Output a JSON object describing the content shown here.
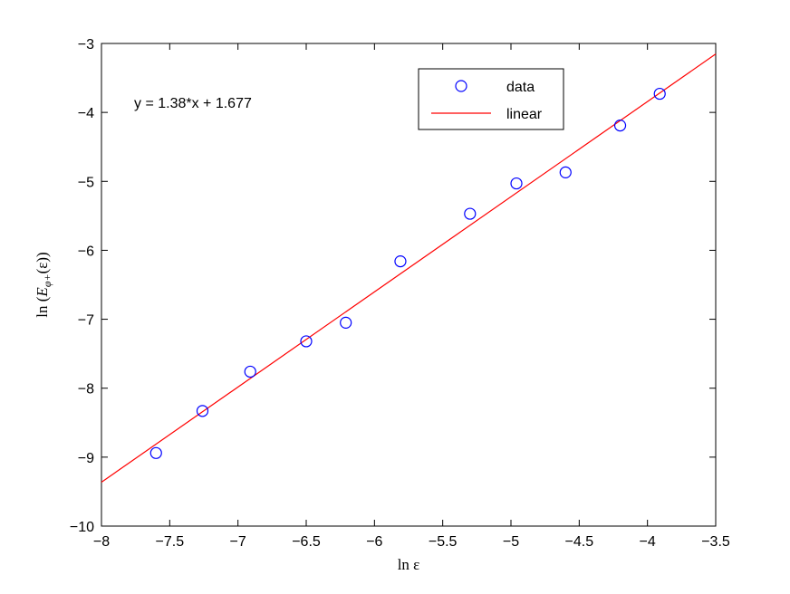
{
  "chart_data": {
    "type": "scatter",
    "annotation": "y = 1.38*x + 1.677",
    "xlabel": "ln ε",
    "ylabel": "ln (E_{φ+}(ε))",
    "ylabel_parts": {
      "prefix": "ln (",
      "main": "E",
      "sub": "φ+",
      "suffix": "(ε))"
    },
    "xlim": [
      -8,
      -3.5
    ],
    "ylim": [
      -10,
      -3
    ],
    "xticks": [
      -8,
      -7.5,
      -7,
      -6.5,
      -6,
      -5.5,
      -5,
      -4.5,
      -4,
      -3.5
    ],
    "yticks": [
      -10,
      -9,
      -8,
      -7,
      -6,
      -5,
      -4,
      -3
    ],
    "xtick_labels": [
      "−8",
      "−7.5",
      "−7",
      "−6.5",
      "−6",
      "−5.5",
      "−5",
      "−4.5",
      "−4",
      "−3.5"
    ],
    "ytick_labels": [
      "−10",
      "−9",
      "−8",
      "−7",
      "−6",
      "−5",
      "−4",
      "−3"
    ],
    "grid": false,
    "legend_position": "top-right",
    "series": [
      {
        "name": "data",
        "kind": "markers",
        "marker": "circle",
        "color": "#0000ff",
        "x": [
          -7.6,
          -7.26,
          -6.91,
          -6.5,
          -6.21,
          -5.81,
          -5.3,
          -4.96,
          -4.6,
          -4.2,
          -3.91
        ],
        "y": [
          -8.94,
          -8.33,
          -7.76,
          -7.32,
          -7.05,
          -6.16,
          -5.47,
          -5.03,
          -4.87,
          -4.19,
          -3.73
        ]
      },
      {
        "name": "linear",
        "kind": "line",
        "color": "#ff0000",
        "slope": 1.38,
        "intercept": 1.677,
        "x": [
          -8,
          -3.5
        ],
        "y": [
          -9.363,
          -3.153
        ]
      }
    ]
  }
}
